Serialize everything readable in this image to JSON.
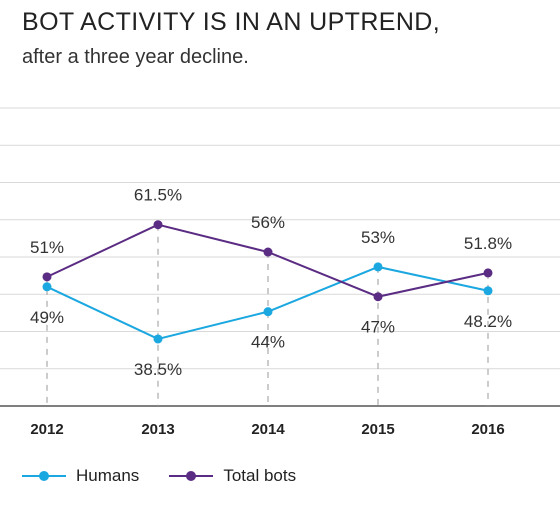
{
  "title": "BOT ACTIVITY IS IN AN UPTREND,",
  "subtitle": "after a three year decline.",
  "colors": {
    "humans": "#1ba7e0",
    "bots": "#5b2c83"
  },
  "chart_data": {
    "type": "line",
    "categories": [
      "2012",
      "2013",
      "2014",
      "2015",
      "2016"
    ],
    "series": [
      {
        "name": "Humans",
        "values": [
          49,
          38.5,
          44,
          53,
          48.2
        ],
        "labels": [
          "49%",
          "38.5%",
          "44%",
          "53%",
          "48.2%"
        ],
        "color": "#1ba7e0"
      },
      {
        "name": "Total bots",
        "values": [
          51,
          61.5,
          56,
          47,
          51.8
        ],
        "labels": [
          "51%",
          "61.5%",
          "56%",
          "47%",
          "51.8%"
        ],
        "color": "#5b2c83"
      }
    ],
    "ylim": [
      25,
      85
    ],
    "grid": true,
    "legend": "bottom-left",
    "title": "BOT ACTIVITY IS IN AN UPTREND,",
    "subtitle": "after a three year decline."
  }
}
